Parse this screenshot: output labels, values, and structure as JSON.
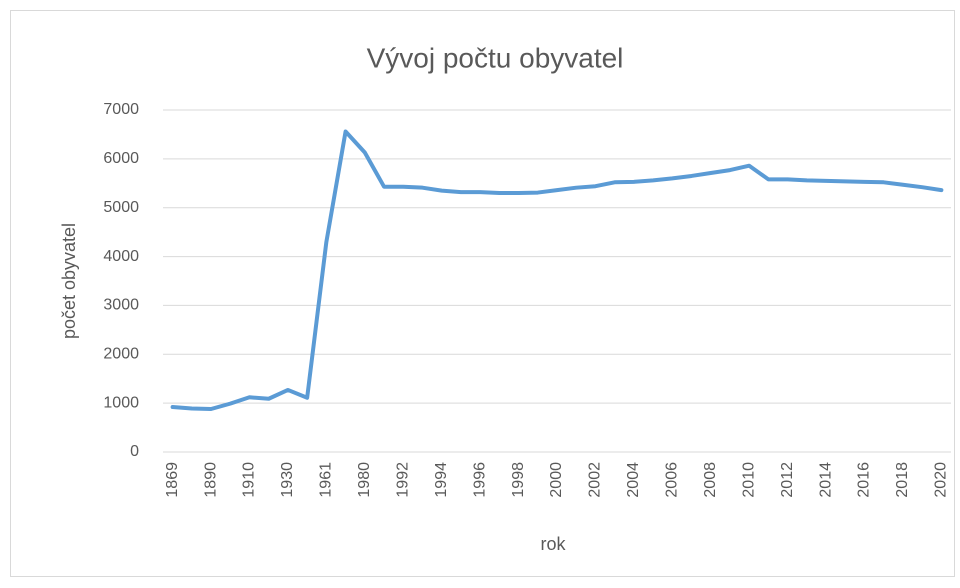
{
  "chart_data": {
    "type": "line",
    "title": "Vývoj počtu obyvatel",
    "x_label": "rok",
    "y_label": "počet obyvatel",
    "categories": [
      1869,
      null,
      1890,
      null,
      1910,
      null,
      1930,
      null,
      1961,
      null,
      1980,
      null,
      1992,
      null,
      1994,
      null,
      1996,
      null,
      1998,
      null,
      2000,
      null,
      2002,
      null,
      2004,
      null,
      2006,
      null,
      2008,
      null,
      2010,
      null,
      2012,
      null,
      2014,
      null,
      2016,
      null,
      2018,
      null,
      2020
    ],
    "series": [
      {
        "name": "počet obyvatel",
        "color": "#5b9bd5",
        "values": [
          920,
          890,
          880,
          990,
          1120,
          1090,
          1270,
          1110,
          4300,
          6560,
          6130,
          5430,
          5430,
          5410,
          5350,
          5320,
          5320,
          5300,
          5300,
          5310,
          5360,
          5410,
          5440,
          5520,
          5530,
          5560,
          5600,
          5650,
          5710,
          5770,
          5860,
          5580,
          5580,
          5560,
          5550,
          5540,
          5530,
          5520,
          5470,
          5420,
          5360
        ]
      }
    ],
    "ylim": [
      0,
      7000
    ],
    "yticks": [
      0,
      1000,
      2000,
      3000,
      4000,
      5000,
      6000,
      7000
    ],
    "grid": true
  }
}
